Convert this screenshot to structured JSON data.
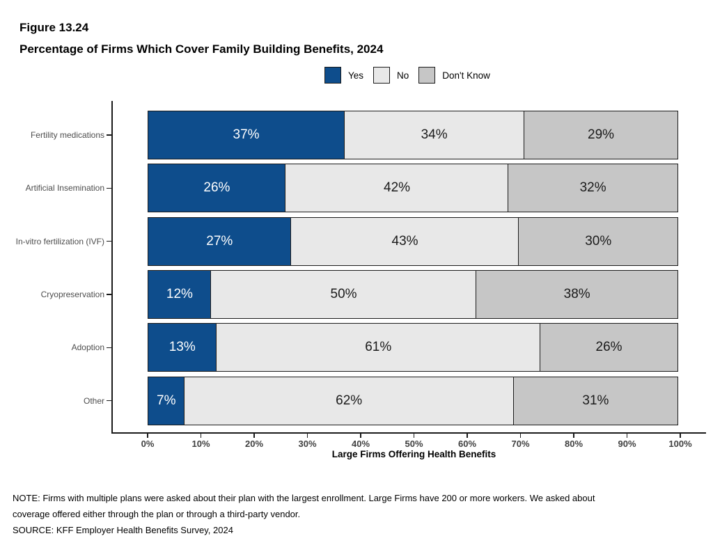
{
  "figure": {
    "number": "Figure 13.24",
    "title": "Percentage of Firms Which Cover Family Building Benefits, 2024"
  },
  "legend": [
    {
      "label": "Yes",
      "color": "#0E4D8C"
    },
    {
      "label": "No",
      "color": "#E8E8E8"
    },
    {
      "label": "Don't Know",
      "color": "#C6C6C6"
    }
  ],
  "chart_data": {
    "type": "bar",
    "orientation": "horizontal",
    "stacked": true,
    "categories": [
      "Fertility medications",
      "Artificial Insemination",
      "In-vitro fertilization (IVF)",
      "Cryopreservation",
      "Adoption",
      "Other"
    ],
    "series": [
      {
        "name": "Yes",
        "color": "#0E4D8C",
        "text_color": "#ffffff",
        "values": [
          37,
          26,
          27,
          12,
          13,
          7
        ]
      },
      {
        "name": "No",
        "color": "#E8E8E8",
        "text_color": "#1a1a1a",
        "values": [
          34,
          42,
          43,
          50,
          61,
          62
        ]
      },
      {
        "name": "Don't Know",
        "color": "#C6C6C6",
        "text_color": "#1a1a1a",
        "values": [
          29,
          32,
          30,
          38,
          26,
          31
        ]
      }
    ],
    "value_suffix": "%",
    "xlabel": "Large Firms Offering Health Benefits",
    "x_ticks": [
      "0%",
      "10%",
      "20%",
      "30%",
      "40%",
      "50%",
      "60%",
      "70%",
      "80%",
      "90%",
      "100%"
    ],
    "xlim": [
      0,
      100
    ],
    "grid": false,
    "legend_position": "top"
  },
  "notes": {
    "line1": "NOTE: Firms with multiple plans were asked about their plan with the largest enrollment.  Large Firms have 200 or more workers.  We asked about",
    "line2": "coverage offered either through the plan or through a third-party vendor.",
    "source": "SOURCE: KFF Employer Health Benefits Survey, 2024"
  }
}
